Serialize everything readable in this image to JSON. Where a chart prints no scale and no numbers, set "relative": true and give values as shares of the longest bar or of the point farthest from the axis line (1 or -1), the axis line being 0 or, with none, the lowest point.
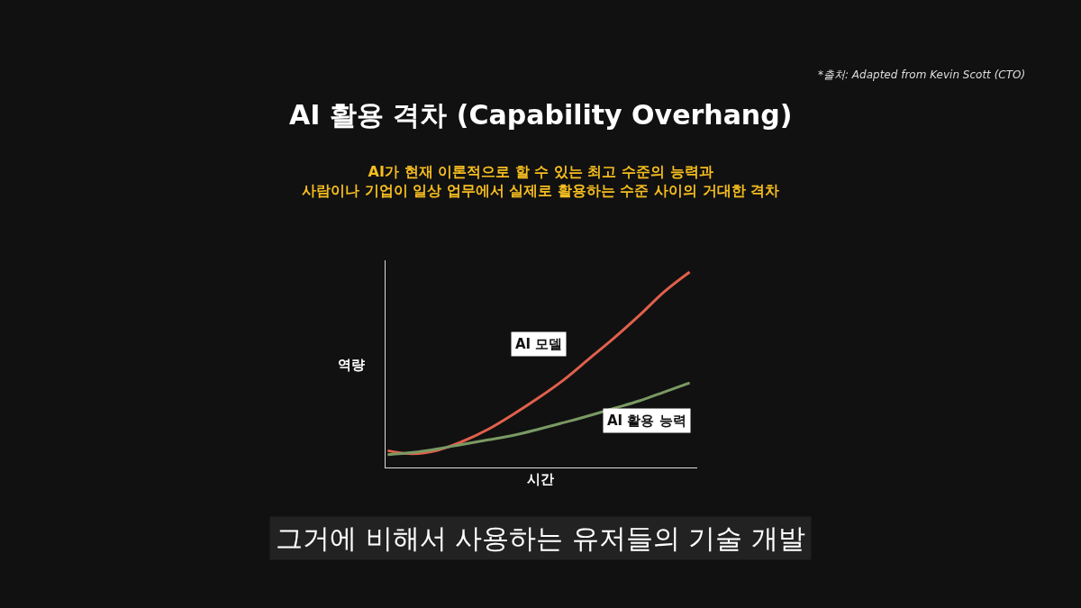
{
  "chart_data": {
    "type": "line",
    "relative": true,
    "title": "AI 활용 격차 (Capability Overhang)",
    "subtitle": "AI가 현재 이론적으로 할 수 있는 최고 수준의 능력과\n사람이나 기업이 일상 업무에서 실제로 활용하는 수준 사이의 거대한 격차",
    "xlabel": "시간",
    "ylabel": "역량",
    "categories": [
      null,
      null,
      null,
      null,
      null,
      null,
      null,
      null,
      null,
      null,
      null,
      null,
      null
    ],
    "series": [
      {
        "name": "AI 모델",
        "color": "#e0604c",
        "values": [
          0.086,
          0.07,
          0.089,
          0.135,
          0.196,
          0.273,
          0.357,
          0.449,
          0.556,
          0.663,
          0.778,
          0.9,
          1.0
        ]
      },
      {
        "name": "AI 활용 능력",
        "color": "#7a9a64",
        "values": [
          0.066,
          0.077,
          0.096,
          0.119,
          0.142,
          0.165,
          0.196,
          0.23,
          0.265,
          0.303,
          0.341,
          0.387,
          0.433
        ]
      }
    ],
    "annotations": [
      "*출처: Adapted from Kevin Scott (CTO)",
      "그거에 비해서 사용하는 유저들의 기술 개발"
    ],
    "grid": false,
    "legend": false,
    "marker": "none",
    "line_style": "solid"
  }
}
